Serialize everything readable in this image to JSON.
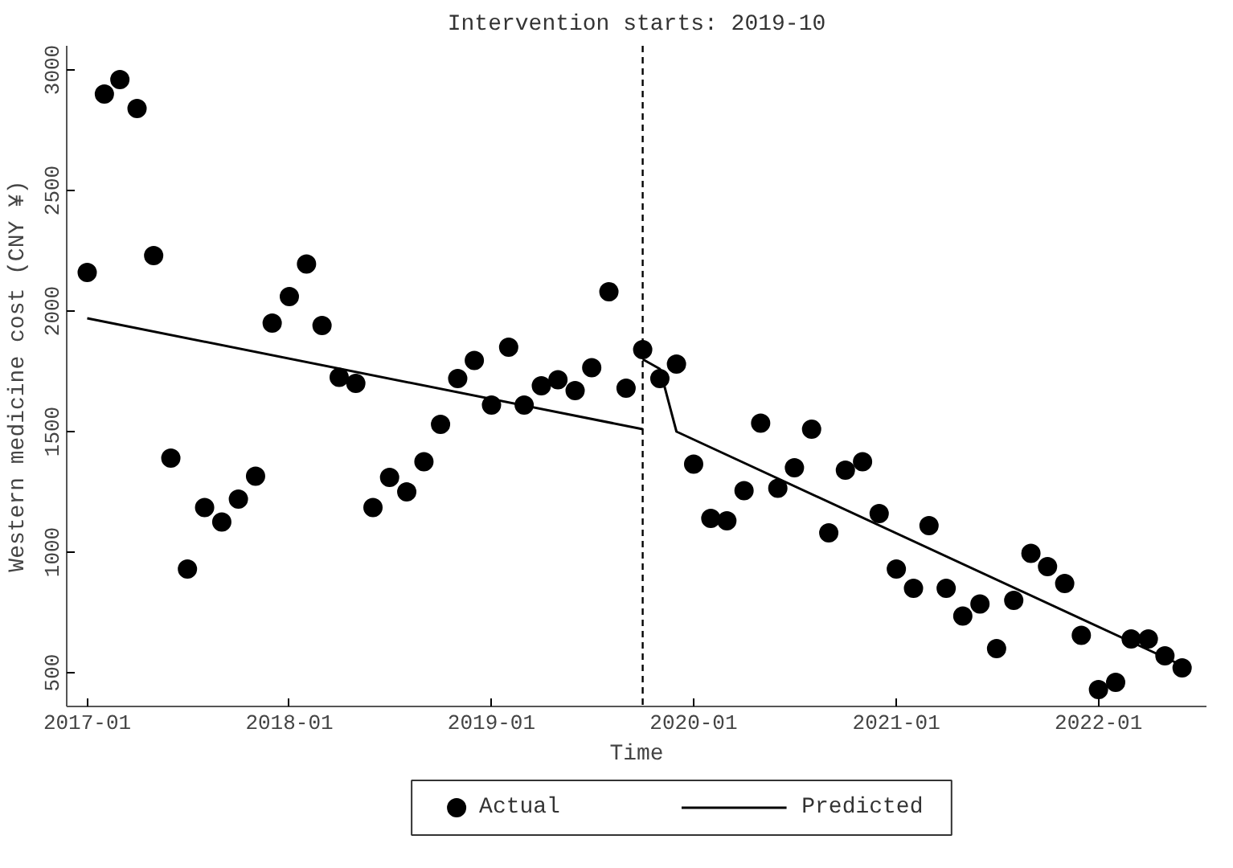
{
  "chart_data": {
    "type": "scatter",
    "xlabel": "Time",
    "ylabel": "Western medicine cost (CNY ¥)",
    "x": [
      "2017-01",
      "2017-02",
      "2017-03",
      "2017-04",
      "2017-05",
      "2017-06",
      "2017-07",
      "2017-08",
      "2017-09",
      "2017-10",
      "2017-11",
      "2017-12",
      "2018-01",
      "2018-02",
      "2018-03",
      "2018-04",
      "2018-05",
      "2018-06",
      "2018-07",
      "2018-08",
      "2018-09",
      "2018-10",
      "2018-11",
      "2018-12",
      "2019-01",
      "2019-02",
      "2019-03",
      "2019-04",
      "2019-05",
      "2019-06",
      "2019-07",
      "2019-08",
      "2019-09",
      "2019-10",
      "2019-11",
      "2019-12",
      "2020-01",
      "2020-02",
      "2020-03",
      "2020-04",
      "2020-05",
      "2020-06",
      "2020-07",
      "2020-08",
      "2020-09",
      "2020-10",
      "2020-11",
      "2020-12",
      "2021-01",
      "2021-02",
      "2021-03",
      "2021-04",
      "2021-05",
      "2021-06",
      "2021-07",
      "2021-08",
      "2021-09",
      "2021-10",
      "2021-11",
      "2021-12",
      "2022-01",
      "2022-02",
      "2022-03",
      "2022-04",
      "2022-05",
      "2022-06"
    ],
    "series": [
      {
        "name": "Actual",
        "marker": "circle",
        "color": "#000000",
        "values": [
          2160,
          2900,
          2960,
          2840,
          2230,
          1390,
          930,
          1185,
          1125,
          1220,
          1315,
          1950,
          2060,
          2195,
          1940,
          1725,
          1700,
          1185,
          1310,
          1250,
          1375,
          1530,
          1720,
          1795,
          1610,
          1850,
          1610,
          1690,
          1715,
          1670,
          1765,
          2080,
          1680,
          1840,
          1720,
          1780,
          1365,
          1140,
          1130,
          1255,
          1535,
          1265,
          1350,
          1510,
          1080,
          1340,
          1375,
          1160,
          930,
          850,
          1110,
          850,
          735,
          785,
          600,
          800,
          995,
          940,
          870,
          655,
          430,
          460,
          640,
          640,
          570,
          520
        ]
      },
      {
        "name": "Predicted",
        "type": "line",
        "line_style": "solid",
        "color": "#000000",
        "x": [
          "2017-01",
          "2019-10"
        ],
        "values": [
          1970,
          1510
        ]
      },
      {
        "type": "line",
        "line_style": "solid",
        "color": "#000000",
        "x": [
          "2019-10",
          "2019-11",
          "2019-12",
          "2022-06"
        ],
        "values": [
          1800,
          1760,
          1500,
          530
        ]
      }
    ],
    "xlim": [
      "2016-11-25",
      "2022-07-15"
    ],
    "xticks": [
      "2017-01",
      "2018-01",
      "2019-01",
      "2020-01",
      "2021-01",
      "2022-01"
    ],
    "ylim": [
      360,
      3100
    ],
    "yticks": [
      500,
      1000,
      1500,
      2000,
      2500,
      3000
    ],
    "ref_lines": [
      {
        "axis": "x",
        "value": "2019-10",
        "label": "Intervention starts: 2019-10",
        "line_style": "dashed",
        "color": "#000000"
      }
    ],
    "grid": false,
    "legend": "bottom"
  }
}
